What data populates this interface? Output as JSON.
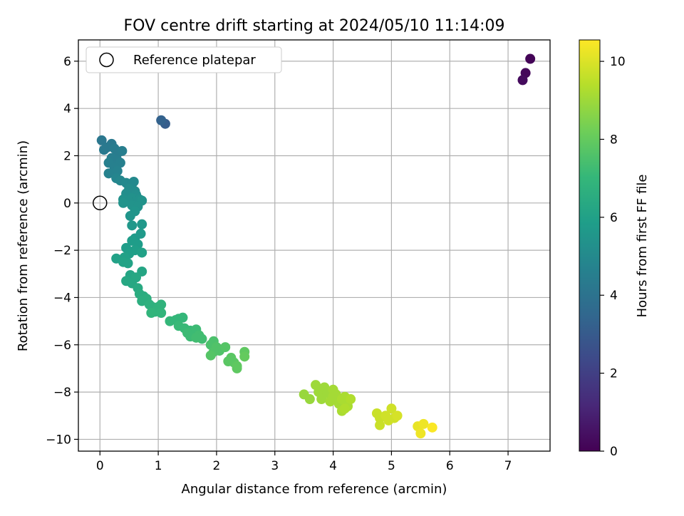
{
  "chart_data": {
    "type": "scatter",
    "title": "FOV centre drift starting at 2024/05/10 11:14:09",
    "xlabel": "Angular distance from reference (arcmin)",
    "ylabel": "Rotation from reference (arcmin)",
    "xlim": [
      -0.37,
      7.72
    ],
    "ylim": [
      -10.5,
      6.9
    ],
    "xticks": [
      0,
      1,
      2,
      3,
      4,
      5,
      6,
      7
    ],
    "yticks": [
      -10,
      -8,
      -6,
      -4,
      -2,
      0,
      2,
      4,
      6
    ],
    "grid": true,
    "legend": {
      "placement": "upper-left",
      "entries": [
        "Reference platepar"
      ]
    },
    "reference_point": {
      "x": 0,
      "y": 0
    },
    "colorbar": {
      "label": "Hours from first FF file",
      "colormap": "viridis",
      "range": [
        0,
        10.55
      ],
      "ticks": [
        0,
        2,
        4,
        6,
        8,
        10
      ]
    },
    "colors": {
      "viridis": [
        "#440154",
        "#482878",
        "#3e4989",
        "#31688e",
        "#26828e",
        "#1f9e89",
        "#35b779",
        "#6ece58",
        "#b5de2b",
        "#fde725"
      ],
      "grid": "#b0b0b0",
      "axis": "#000000"
    },
    "series": [
      {
        "points": [
          [
            7.38,
            6.1,
            0.1
          ],
          [
            7.3,
            5.5,
            0.2
          ],
          [
            7.25,
            5.2,
            0.3
          ],
          [
            1.12,
            3.35,
            3.1
          ],
          [
            1.05,
            3.5,
            3.3
          ],
          [
            0.03,
            2.65,
            4.2
          ],
          [
            0.07,
            2.25,
            4.3
          ],
          [
            0.12,
            2.35,
            4.3
          ],
          [
            0.2,
            2.5,
            4.3
          ],
          [
            0.25,
            2.3,
            4.4
          ],
          [
            0.3,
            2.1,
            4.4
          ],
          [
            0.38,
            2.2,
            4.5
          ],
          [
            0.2,
            1.9,
            4.5
          ],
          [
            0.3,
            1.8,
            4.5
          ],
          [
            0.35,
            1.7,
            4.6
          ],
          [
            0.15,
            1.7,
            4.6
          ],
          [
            0.25,
            1.5,
            4.6
          ],
          [
            0.3,
            1.35,
            4.7
          ],
          [
            0.15,
            1.25,
            4.7
          ],
          [
            0.28,
            1.05,
            4.8
          ],
          [
            0.35,
            0.95,
            4.9
          ],
          [
            0.45,
            0.85,
            5.0
          ],
          [
            0.55,
            0.8,
            5.0
          ],
          [
            0.58,
            0.9,
            5.0
          ],
          [
            0.5,
            0.6,
            5.1
          ],
          [
            0.6,
            0.5,
            5.1
          ],
          [
            0.45,
            0.4,
            5.2
          ],
          [
            0.62,
            0.35,
            5.2
          ],
          [
            0.55,
            0.2,
            5.3
          ],
          [
            0.4,
            0.15,
            5.3
          ],
          [
            0.5,
            0.05,
            5.3
          ],
          [
            0.68,
            0.15,
            5.3
          ],
          [
            0.72,
            0.1,
            5.4
          ],
          [
            0.4,
            0.0,
            5.4
          ],
          [
            0.55,
            -0.1,
            5.4
          ],
          [
            0.65,
            -0.15,
            5.4
          ],
          [
            0.6,
            -0.35,
            5.5
          ],
          [
            0.52,
            -0.55,
            5.5
          ],
          [
            0.55,
            -0.95,
            5.6
          ],
          [
            0.72,
            -0.9,
            5.6
          ],
          [
            0.7,
            -1.3,
            5.7
          ],
          [
            0.6,
            -1.5,
            5.7
          ],
          [
            0.55,
            -1.6,
            5.8
          ],
          [
            0.65,
            -1.75,
            5.8
          ],
          [
            0.45,
            -1.9,
            5.8
          ],
          [
            0.6,
            -2.0,
            5.9
          ],
          [
            0.5,
            -2.15,
            5.9
          ],
          [
            0.42,
            -2.3,
            6.0
          ],
          [
            0.72,
            -2.1,
            6.0
          ],
          [
            0.28,
            -2.35,
            6.0
          ],
          [
            0.4,
            -2.5,
            6.1
          ],
          [
            0.48,
            -2.55,
            6.1
          ],
          [
            0.72,
            -2.9,
            6.2
          ],
          [
            0.52,
            -3.05,
            6.2
          ],
          [
            0.62,
            -3.15,
            6.3
          ],
          [
            0.45,
            -3.3,
            6.3
          ],
          [
            0.55,
            -3.4,
            6.3
          ],
          [
            0.65,
            -3.6,
            6.4
          ],
          [
            0.68,
            -3.85,
            6.5
          ],
          [
            0.75,
            -3.95,
            6.5
          ],
          [
            0.8,
            -4.05,
            6.6
          ],
          [
            0.72,
            -4.15,
            6.6
          ],
          [
            0.85,
            -4.3,
            6.7
          ],
          [
            0.9,
            -4.4,
            6.7
          ],
          [
            1.0,
            -4.4,
            6.8
          ],
          [
            1.05,
            -4.3,
            6.8
          ],
          [
            0.95,
            -4.6,
            6.8
          ],
          [
            0.88,
            -4.65,
            6.9
          ],
          [
            1.05,
            -4.65,
            6.9
          ],
          [
            1.2,
            -5.0,
            7.0
          ],
          [
            1.3,
            -4.95,
            7.0
          ],
          [
            1.35,
            -4.9,
            7.0
          ],
          [
            1.42,
            -4.85,
            7.0
          ],
          [
            1.35,
            -5.2,
            7.1
          ],
          [
            1.45,
            -5.3,
            7.1
          ],
          [
            1.55,
            -5.4,
            7.1
          ],
          [
            1.5,
            -5.5,
            7.2
          ],
          [
            1.6,
            -5.55,
            7.2
          ],
          [
            1.65,
            -5.35,
            7.2
          ],
          [
            1.55,
            -5.65,
            7.2
          ],
          [
            1.7,
            -5.6,
            7.3
          ],
          [
            1.75,
            -5.75,
            7.3
          ],
          [
            1.65,
            -5.7,
            7.3
          ],
          [
            1.95,
            -5.85,
            7.5
          ],
          [
            1.9,
            -6.0,
            7.5
          ],
          [
            2.0,
            -6.1,
            7.6
          ],
          [
            2.05,
            -6.25,
            7.6
          ],
          [
            1.95,
            -6.3,
            7.6
          ],
          [
            1.9,
            -6.45,
            7.7
          ],
          [
            2.15,
            -6.1,
            7.7
          ],
          [
            2.25,
            -6.55,
            7.8
          ],
          [
            2.2,
            -6.7,
            7.8
          ],
          [
            2.3,
            -6.75,
            7.8
          ],
          [
            2.35,
            -6.9,
            7.9
          ],
          [
            2.35,
            -7.0,
            7.9
          ],
          [
            2.48,
            -6.3,
            7.9
          ],
          [
            2.48,
            -6.5,
            8.0
          ],
          [
            3.5,
            -8.1,
            8.9
          ],
          [
            3.6,
            -8.3,
            8.9
          ],
          [
            3.7,
            -7.7,
            9.0
          ],
          [
            3.75,
            -8.0,
            9.0
          ],
          [
            3.8,
            -8.3,
            9.0
          ],
          [
            3.85,
            -7.8,
            9.0
          ],
          [
            3.9,
            -8.05,
            9.0
          ],
          [
            3.95,
            -8.4,
            9.1
          ],
          [
            4.0,
            -8.2,
            9.1
          ],
          [
            4.0,
            -7.9,
            9.1
          ],
          [
            4.05,
            -8.1,
            9.1
          ],
          [
            4.1,
            -8.5,
            9.1
          ],
          [
            4.15,
            -8.3,
            9.2
          ],
          [
            4.15,
            -8.8,
            9.2
          ],
          [
            4.2,
            -8.2,
            9.2
          ],
          [
            4.25,
            -8.6,
            9.2
          ],
          [
            4.3,
            -8.3,
            9.3
          ],
          [
            4.2,
            -8.7,
            9.3
          ],
          [
            4.75,
            -8.9,
            9.7
          ],
          [
            4.8,
            -9.1,
            9.7
          ],
          [
            4.8,
            -9.4,
            9.7
          ],
          [
            4.9,
            -9.0,
            9.8
          ],
          [
            4.95,
            -9.2,
            9.8
          ],
          [
            5.0,
            -8.7,
            9.8
          ],
          [
            5.05,
            -9.1,
            9.8
          ],
          [
            5.1,
            -9.0,
            9.9
          ],
          [
            5.45,
            -9.45,
            10.2
          ],
          [
            5.5,
            -9.75,
            10.3
          ],
          [
            5.55,
            -9.35,
            10.3
          ],
          [
            5.7,
            -9.5,
            10.5
          ]
        ]
      }
    ]
  }
}
